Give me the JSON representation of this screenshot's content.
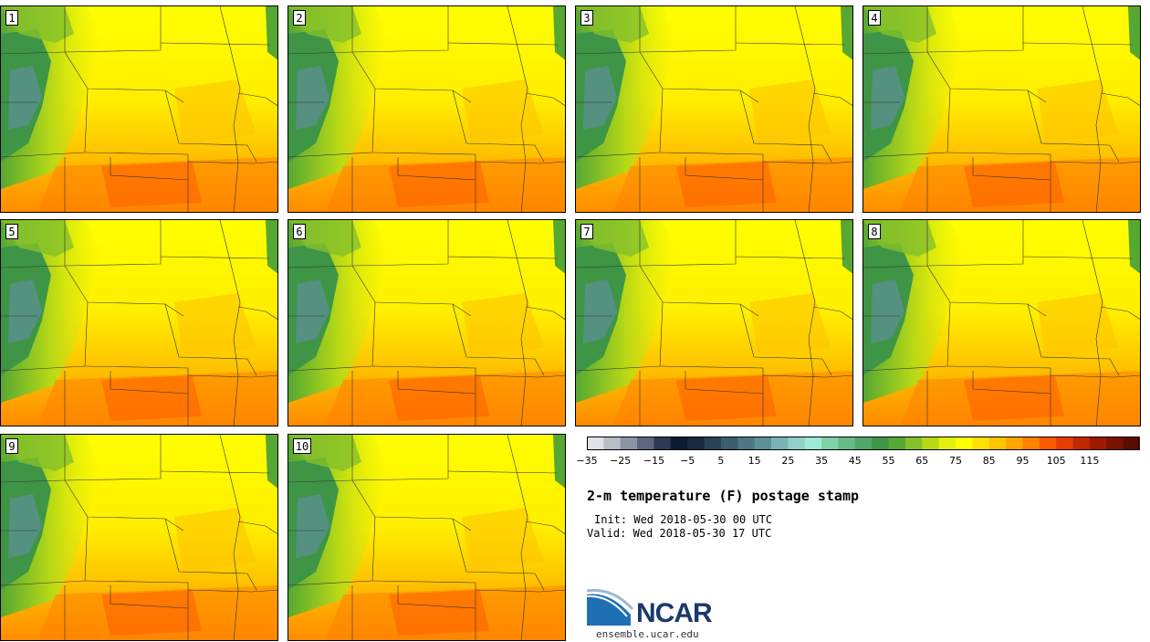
{
  "panels": [
    {
      "label": "1"
    },
    {
      "label": "2"
    },
    {
      "label": "3"
    },
    {
      "label": "4"
    },
    {
      "label": "5"
    },
    {
      "label": "6"
    },
    {
      "label": "7"
    },
    {
      "label": "8"
    },
    {
      "label": "9"
    },
    {
      "label": "10"
    }
  ],
  "colorbar": {
    "colors": [
      "#dfe3e8",
      "#b8bcc5",
      "#8c93a3",
      "#5d6780",
      "#2e3a55",
      "#0c1a33",
      "#17283f",
      "#2a4257",
      "#3c5c70",
      "#4e7685",
      "#5e909a",
      "#7ab3b3",
      "#8fd0c8",
      "#9ee8d8",
      "#7fd1a6",
      "#67bb86",
      "#52a668",
      "#3f9546",
      "#56a832",
      "#85c12a",
      "#b8d916",
      "#e3ef0c",
      "#ffff00",
      "#ffe000",
      "#ffc400",
      "#ffa600",
      "#ff8200",
      "#ff5a00",
      "#e63c00",
      "#c22800",
      "#a01a00",
      "#7a1200",
      "#5a0e00"
    ],
    "tick_labels": [
      "-35",
      "-25",
      "-15",
      "-5",
      "5",
      "15",
      "25",
      "35",
      "45",
      "55",
      "65",
      "75",
      "85",
      "95",
      "105",
      "115"
    ]
  },
  "title": "2-m temperature (F) postage stamp",
  "init": "Init: Wed 2018-05-30 00 UTC",
  "valid": "Valid: Wed 2018-05-30 17 UTC",
  "logo": {
    "text": "NCAR",
    "url_text": "ensemble.ucar.edu"
  }
}
